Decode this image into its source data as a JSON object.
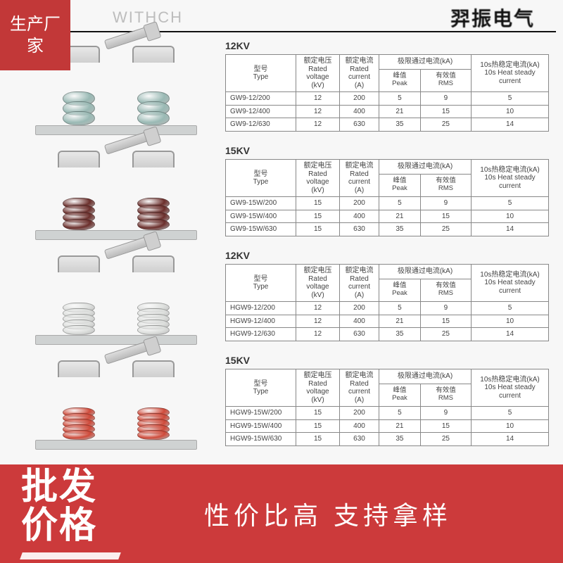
{
  "badge_top": "生产厂家",
  "header": {
    "left_word": "WITHCH",
    "right_brand": "羿振电气"
  },
  "columns": {
    "model": "型号\nType",
    "voltage": "额定电压\nRated voltage\n(kV)",
    "current": "额定电流\nRated current\n(A)",
    "withstand": "极限通过电流(kA)",
    "peak": "峰值\nPeak",
    "rms": "有效值\nRMS",
    "heat": "10s热稳定电流(kA)\n10s Heat steady\ncurrent"
  },
  "sections": [
    {
      "title": "12KV",
      "insulator_color": "#99b9b4",
      "disc_height": 20,
      "disc_count": 3,
      "rows": [
        {
          "model": "GW9-12/200",
          "v": "12",
          "a": "200",
          "peak": "5",
          "rms": "9",
          "heat": "5"
        },
        {
          "model": "GW9-12/400",
          "v": "12",
          "a": "400",
          "peak": "21",
          "rms": "15",
          "heat": "10"
        },
        {
          "model": "GW9-12/630",
          "v": "12",
          "a": "630",
          "peak": "35",
          "rms": "25",
          "heat": "14"
        }
      ]
    },
    {
      "title": "15KV",
      "insulator_color": "#6b2f2c",
      "disc_height": 16,
      "disc_count": 4,
      "rows": [
        {
          "model": "GW9-15W/200",
          "v": "15",
          "a": "200",
          "peak": "5",
          "rms": "9",
          "heat": "5"
        },
        {
          "model": "GW9-15W/400",
          "v": "15",
          "a": "400",
          "peak": "21",
          "rms": "15",
          "heat": "10"
        },
        {
          "model": "GW9-15W/630",
          "v": "15",
          "a": "630",
          "peak": "35",
          "rms": "25",
          "heat": "14"
        }
      ]
    },
    {
      "title": "12KV",
      "insulator_color": "#dcdedc",
      "disc_height": 14,
      "disc_count": 5,
      "rows": [
        {
          "model": "HGW9-12/200",
          "v": "12",
          "a": "200",
          "peak": "5",
          "rms": "9",
          "heat": "5"
        },
        {
          "model": "HGW9-12/400",
          "v": "12",
          "a": "400",
          "peak": "21",
          "rms": "15",
          "heat": "10"
        },
        {
          "model": "HGW9-12/630",
          "v": "12",
          "a": "630",
          "peak": "35",
          "rms": "25",
          "heat": "14"
        }
      ]
    },
    {
      "title": "15KV",
      "insulator_color": "#cf4a3a",
      "disc_height": 14,
      "disc_count": 5,
      "rows": [
        {
          "model": "HGW9-15W/200",
          "v": "15",
          "a": "200",
          "peak": "5",
          "rms": "9",
          "heat": "5"
        },
        {
          "model": "HGW9-15W/400",
          "v": "15",
          "a": "400",
          "peak": "21",
          "rms": "15",
          "heat": "10"
        },
        {
          "model": "HGW9-15W/630",
          "v": "15",
          "a": "630",
          "peak": "35",
          "rms": "25",
          "heat": "14"
        }
      ]
    }
  ],
  "bottom": {
    "left_main": "批发\n价格",
    "right_tagline": "性价比高  支持拿样"
  },
  "style": {
    "brand_red": "#cc3a3b",
    "badge_red": "#c23838",
    "table_border": "#888888",
    "text_color": "#444444",
    "background": "#f7f7f7"
  }
}
